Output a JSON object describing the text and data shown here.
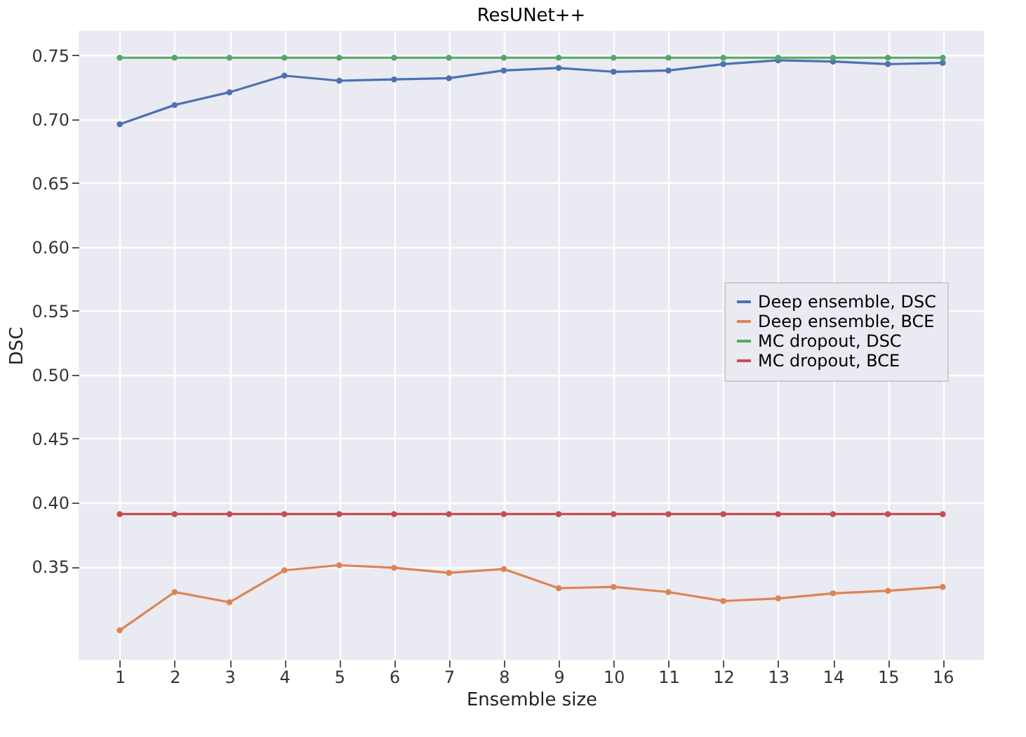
{
  "chart_data": {
    "type": "line",
    "title": "ResUNet++",
    "xlabel": "Ensemble size",
    "ylabel": "DSC",
    "x": [
      1,
      2,
      3,
      4,
      5,
      6,
      7,
      8,
      9,
      10,
      11,
      12,
      13,
      14,
      15,
      16
    ],
    "xlim": [
      0.25,
      16.75
    ],
    "xticks": [
      1,
      2,
      3,
      4,
      5,
      6,
      7,
      8,
      9,
      10,
      11,
      12,
      13,
      14,
      15,
      16
    ],
    "ylim": [
      0.277,
      0.769
    ],
    "yticks": [
      0.35,
      {
        "value": 0.4,
        "label": "0.40"
      },
      0.45,
      {
        "value": 0.5,
        "label": "0.50"
      },
      0.55,
      {
        "value": 0.6,
        "label": "0.60"
      },
      0.65,
      {
        "value": 0.7,
        "label": "0.70"
      },
      0.75
    ],
    "grid": true,
    "legend": "right",
    "marker": "circle",
    "line_style": "solid",
    "series": [
      {
        "name": "Deep ensemble, DSC",
        "color": "#4c72b0",
        "values": [
          0.696,
          0.711,
          0.721,
          0.734,
          0.73,
          0.731,
          0.732,
          0.738,
          0.74,
          0.737,
          0.738,
          0.743,
          0.746,
          0.745,
          0.743,
          0.744
        ]
      },
      {
        "name": "Deep ensemble, BCE",
        "color": "#dd8452",
        "values": [
          0.3,
          0.33,
          0.322,
          0.347,
          0.351,
          0.349,
          0.345,
          0.348,
          0.333,
          0.334,
          0.33,
          0.323,
          0.325,
          0.329,
          0.331,
          0.334
        ]
      },
      {
        "name": "MC dropout, DSC",
        "color": "#55a868",
        "values": [
          0.748,
          0.748,
          0.748,
          0.748,
          0.748,
          0.748,
          0.748,
          0.748,
          0.748,
          0.748,
          0.748,
          0.748,
          0.748,
          0.748,
          0.748,
          0.748
        ]
      },
      {
        "name": "MC dropout, BCE",
        "color": "#c44e52",
        "values": [
          0.391,
          0.391,
          0.391,
          0.391,
          0.391,
          0.391,
          0.391,
          0.391,
          0.391,
          0.391,
          0.391,
          0.391,
          0.391,
          0.391,
          0.391,
          0.391
        ]
      }
    ]
  }
}
